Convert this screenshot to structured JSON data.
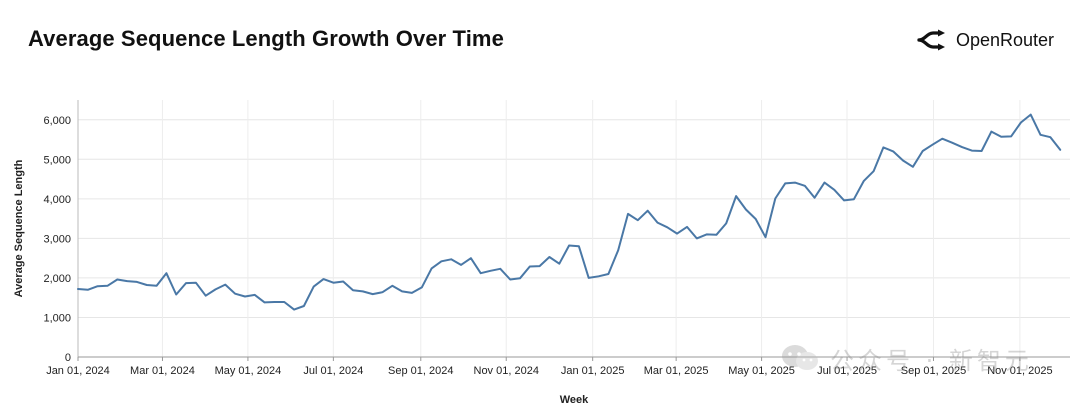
{
  "header": {
    "title": "Average Sequence Length Growth Over Time",
    "brand_name": "OpenRouter"
  },
  "watermark": {
    "text": "公众号 · 新智元"
  },
  "chart_data": {
    "type": "line",
    "title": "Average Sequence Length Growth Over Time",
    "xlabel": "Week",
    "ylabel": "Average Sequence Length",
    "ylim": [
      0,
      6500
    ],
    "yticks": [
      0,
      1000,
      2000,
      3000,
      4000,
      5000,
      6000
    ],
    "ytick_labels": [
      "0",
      "1,000",
      "2,000",
      "3,000",
      "4,000",
      "5,000",
      "6,000"
    ],
    "xticks": [
      0,
      8.6,
      17.3,
      26,
      34.9,
      43.6,
      52.4,
      60.9,
      69.6,
      78.3,
      87.1,
      95.9
    ],
    "xtick_labels": [
      "Jan 01, 2024",
      "Mar 01, 2024",
      "May 01, 2024",
      "Jul 01, 2024",
      "Sep 01, 2024",
      "Nov 01, 2024",
      "Jan 01, 2025",
      "Mar 01, 2025",
      "May 01, 2025",
      "Jul 01, 2025",
      "Sep 01, 2025",
      "Nov 01, 2025"
    ],
    "xlim": [
      0,
      101
    ],
    "grid": true,
    "series": [
      {
        "name": "Average Sequence Length",
        "color": "#4a78a6",
        "values": [
          1720,
          1700,
          1790,
          1800,
          1960,
          1920,
          1900,
          1820,
          1800,
          2120,
          1580,
          1870,
          1880,
          1550,
          1710,
          1830,
          1600,
          1530,
          1570,
          1380,
          1390,
          1390,
          1200,
          1290,
          1780,
          1970,
          1880,
          1910,
          1690,
          1660,
          1590,
          1640,
          1800,
          1660,
          1620,
          1760,
          2240,
          2420,
          2470,
          2330,
          2500,
          2120,
          2180,
          2230,
          1960,
          1990,
          2290,
          2300,
          2530,
          2360,
          2820,
          2800,
          2000,
          2040,
          2100,
          2700,
          3620,
          3460,
          3700,
          3400,
          3280,
          3120,
          3290,
          3000,
          3100,
          3090,
          3380,
          4070,
          3730,
          3490,
          3030,
          4010,
          4390,
          4410,
          4330,
          4030,
          4410,
          4230,
          3960,
          3990,
          4450,
          4700,
          5300,
          5200,
          4970,
          4810,
          5210,
          5370,
          5520,
          5420,
          5310,
          5220,
          5210,
          5700,
          5570,
          5580,
          5930,
          6130,
          5620,
          5560,
          5240
        ]
      }
    ]
  }
}
